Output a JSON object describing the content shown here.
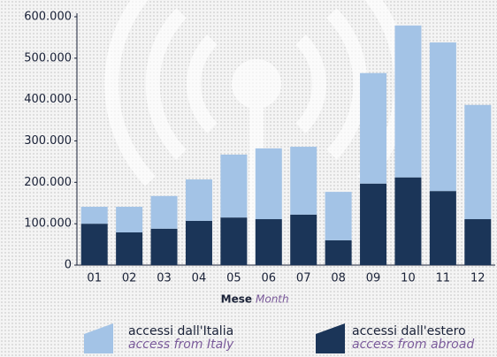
{
  "chart_data": {
    "type": "stacked_bar",
    "x_label": "Mese",
    "x_label_en": "Month",
    "categories": [
      "01",
      "02",
      "03",
      "04",
      "05",
      "06",
      "07",
      "08",
      "09",
      "10",
      "11",
      "12"
    ],
    "series": [
      {
        "name": "accessi dall'Italia",
        "name_en": "access from Italy",
        "color": "#a3c3e6",
        "values": [
          41000,
          62000,
          79000,
          100000,
          152000,
          171000,
          164000,
          117000,
          267000,
          367000,
          359000,
          276000
        ]
      },
      {
        "name": "accessi dall'estero",
        "name_en": "access from abroad",
        "color": "#1b3558",
        "values": [
          100000,
          79000,
          88000,
          107000,
          115000,
          111000,
          122000,
          60000,
          197000,
          212000,
          179000,
          111000
        ]
      }
    ],
    "ylim": [
      0,
      600000
    ],
    "yticks": [
      0,
      {
        "value": 100000,
        "label": "100.000"
      },
      {
        "value": 200000,
        "label": "200.000"
      },
      {
        "value": 300000,
        "label": "300.000"
      },
      {
        "value": 400000,
        "label": "400.000"
      },
      {
        "value": 500000,
        "label": "500.000"
      },
      {
        "value": 600000,
        "label": "600.000"
      }
    ],
    "grid": false
  }
}
